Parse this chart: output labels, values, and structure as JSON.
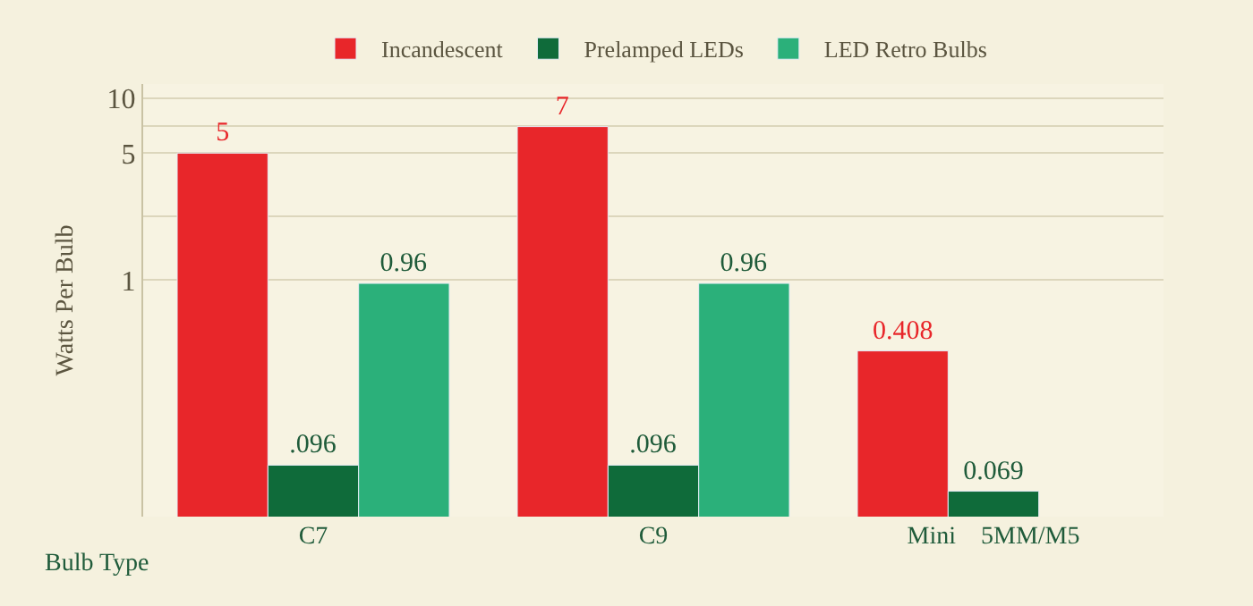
{
  "chart_data": {
    "type": "bar",
    "xlabel": "Bulb Type",
    "ylabel": "Watts Per Bulb",
    "categories": [
      "C7",
      "C9",
      "Mini    5MM/M5"
    ],
    "series": [
      {
        "name": "Incandescent",
        "color": "#e8262a",
        "values": [
          5,
          7,
          0.408
        ],
        "value_labels": [
          "5",
          "7",
          "0.408"
        ]
      },
      {
        "name": "Prelamped LEDs",
        "color": "#0f6b3a",
        "values": [
          0.096,
          0.096,
          0.069
        ],
        "value_labels": [
          ".096",
          ".096",
          "0.069"
        ]
      },
      {
        "name": "LED Retro Bulbs",
        "color": "#2bb07a",
        "values": [
          0.96,
          0.96,
          null
        ],
        "value_labels": [
          "0.96",
          "0.96",
          null
        ]
      }
    ],
    "log": "y",
    "ylim": [
      0.05,
      12
    ],
    "yticks": [
      1,
      {
        "value": 2.24,
        "label": null
      },
      5,
      {
        "value": 7.07,
        "label": null
      },
      10
    ],
    "grid": "y",
    "legend": "top"
  }
}
